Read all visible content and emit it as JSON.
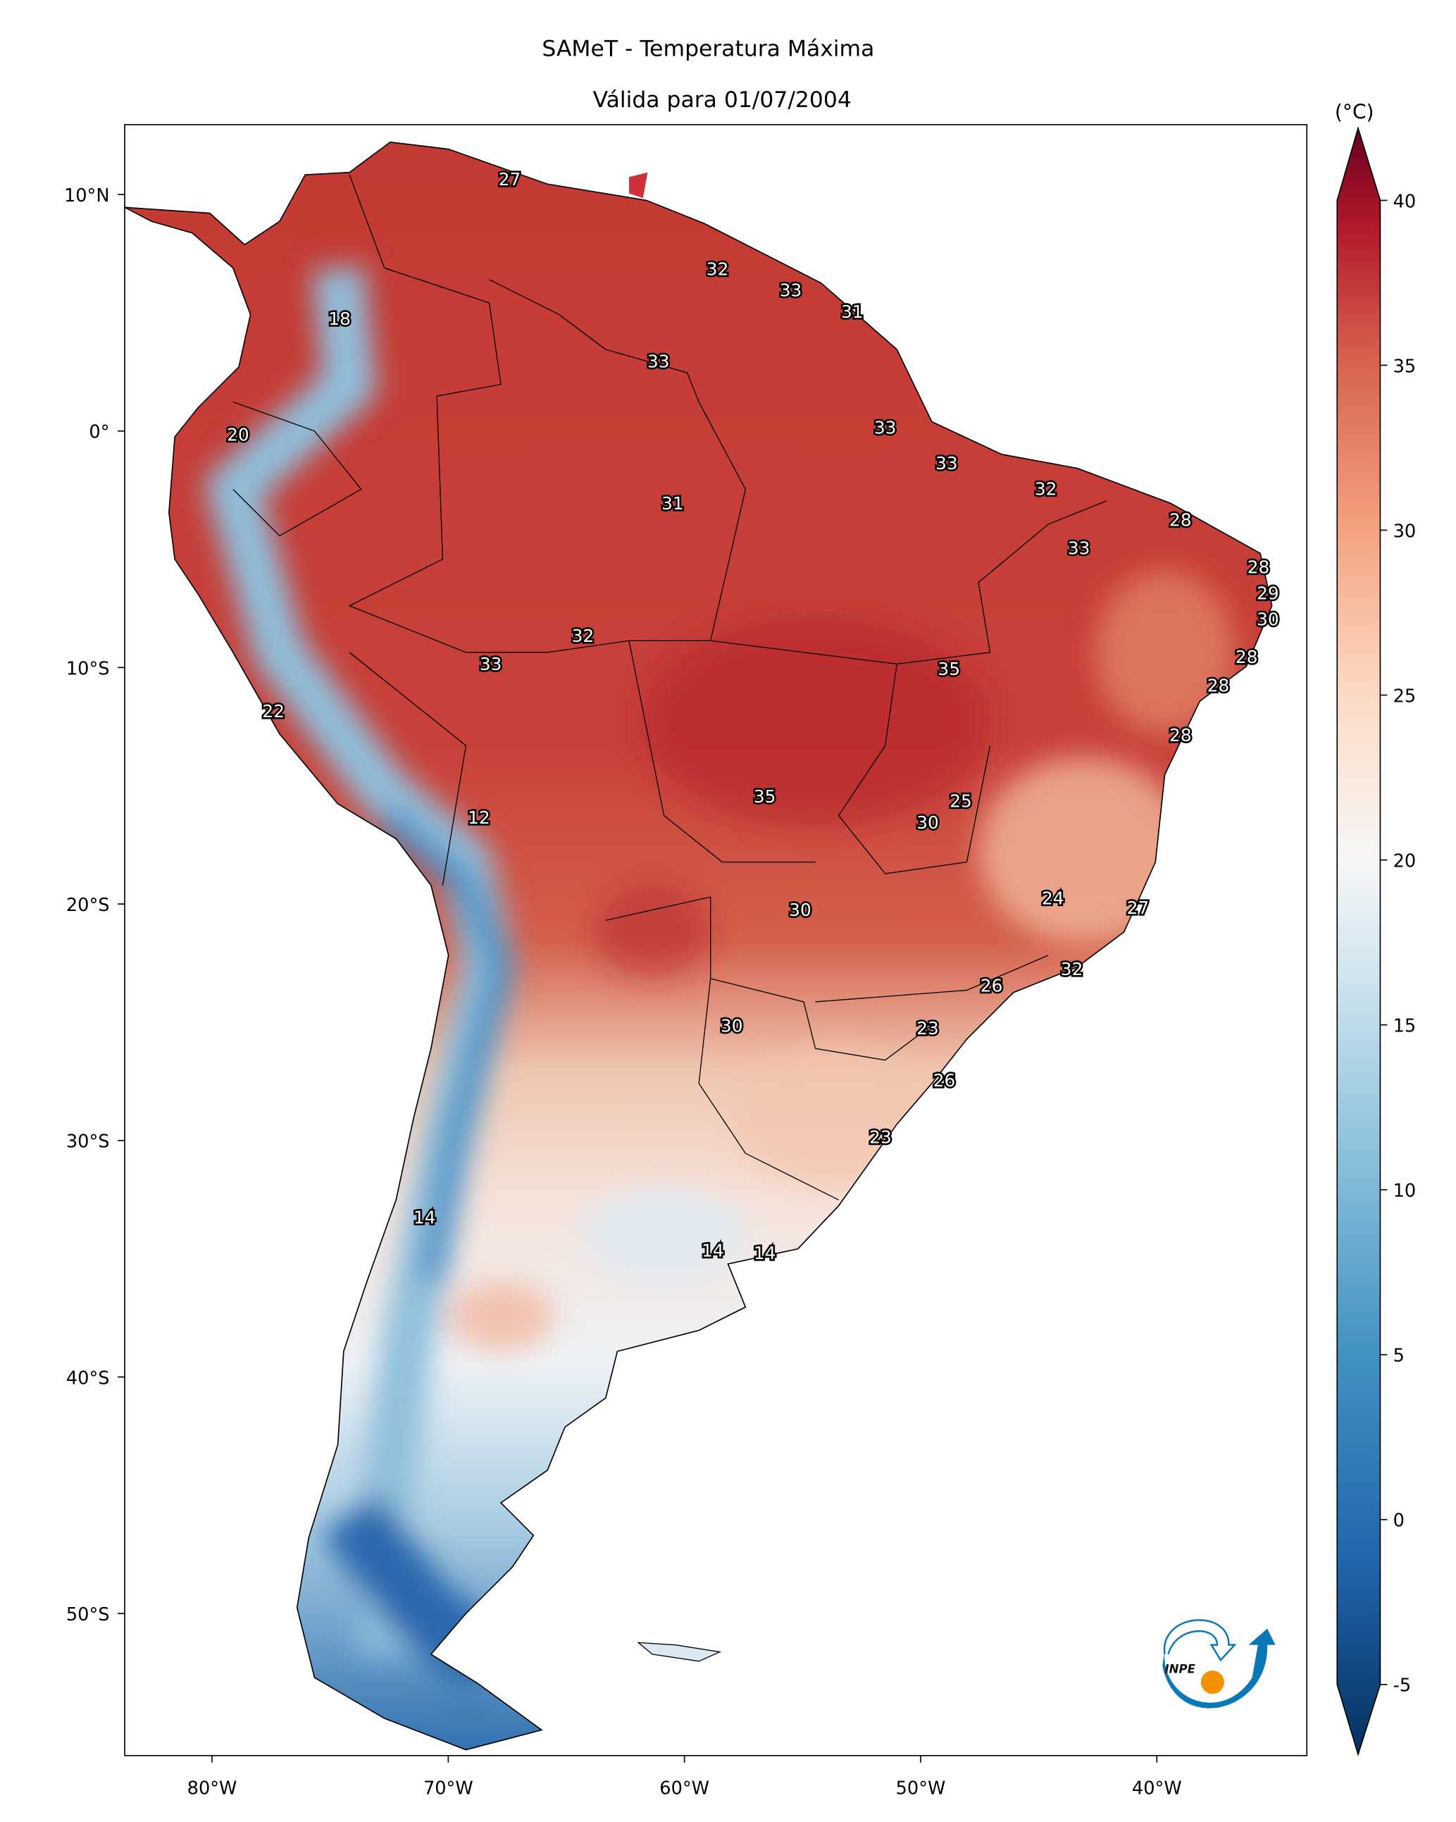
{
  "title": "SAMeT - Temperatura Máxima",
  "subtitle": "Válida para 01/07/2004",
  "colorbar": {
    "unit": "(°C)",
    "range": [
      -5,
      40
    ],
    "ticks": [
      "40",
      "35",
      "30",
      "25",
      "20",
      "15",
      "10",
      "5",
      "0",
      "-5"
    ],
    "tick_values": [
      40,
      35,
      30,
      25,
      20,
      15,
      10,
      5,
      0,
      -5
    ],
    "colormap": "RdBu_r",
    "extend": "both"
  },
  "axes": {
    "lon_ticks": [
      {
        "value": -80,
        "label": "80°W"
      },
      {
        "value": -70,
        "label": "70°W"
      },
      {
        "value": -60,
        "label": "60°W"
      },
      {
        "value": -50,
        "label": "50°W"
      },
      {
        "value": -40,
        "label": "40°W"
      }
    ],
    "lat_ticks": [
      {
        "value": 10,
        "label": "10°N"
      },
      {
        "value": 0,
        "label": "0°"
      },
      {
        "value": -10,
        "label": "10°S"
      },
      {
        "value": -20,
        "label": "20°S"
      },
      {
        "value": -30,
        "label": "30°S"
      },
      {
        "value": -40,
        "label": "40°S"
      },
      {
        "value": -50,
        "label": "50°S"
      }
    ],
    "lon_range": [
      -83.7,
      -33.7
    ],
    "lat_range": [
      -56.7,
      12.9
    ]
  },
  "contour_labels": [
    {
      "v": "27",
      "lon": -67.4,
      "lat": 10.6
    },
    {
      "v": "32",
      "lon": -58.6,
      "lat": 6.8
    },
    {
      "v": "33",
      "lon": -55.5,
      "lat": 5.9
    },
    {
      "v": "31",
      "lon": -52.9,
      "lat": 5.0
    },
    {
      "v": "18",
      "lon": -74.6,
      "lat": 4.7
    },
    {
      "v": "33",
      "lon": -61.1,
      "lat": 2.9
    },
    {
      "v": "20",
      "lon": -78.9,
      "lat": -0.2
    },
    {
      "v": "33",
      "lon": -51.5,
      "lat": 0.1
    },
    {
      "v": "33",
      "lon": -48.9,
      "lat": -1.4
    },
    {
      "v": "32",
      "lon": -44.7,
      "lat": -2.5
    },
    {
      "v": "31",
      "lon": -60.5,
      "lat": -3.1
    },
    {
      "v": "28",
      "lon": -39.0,
      "lat": -3.8
    },
    {
      "v": "33",
      "lon": -43.3,
      "lat": -5.0
    },
    {
      "v": "28",
      "lon": -35.7,
      "lat": -5.8
    },
    {
      "v": "29",
      "lon": -35.3,
      "lat": -6.9
    },
    {
      "v": "30",
      "lon": -35.3,
      "lat": -8.0
    },
    {
      "v": "32",
      "lon": -64.3,
      "lat": -8.7
    },
    {
      "v": "28",
      "lon": -36.2,
      "lat": -9.6
    },
    {
      "v": "35",
      "lon": -48.8,
      "lat": -10.1
    },
    {
      "v": "33",
      "lon": -68.2,
      "lat": -9.9
    },
    {
      "v": "28",
      "lon": -37.4,
      "lat": -10.8
    },
    {
      "v": "22",
      "lon": -77.4,
      "lat": -11.9
    },
    {
      "v": "28",
      "lon": -39.0,
      "lat": -12.9
    },
    {
      "v": "35",
      "lon": -56.6,
      "lat": -15.5
    },
    {
      "v": "25",
      "lon": -48.3,
      "lat": -15.7
    },
    {
      "v": "12",
      "lon": -68.7,
      "lat": -16.4
    },
    {
      "v": "30",
      "lon": -49.7,
      "lat": -16.6
    },
    {
      "v": "24",
      "lon": -44.4,
      "lat": -19.8
    },
    {
      "v": "27",
      "lon": -40.8,
      "lat": -20.2
    },
    {
      "v": "30",
      "lon": -55.1,
      "lat": -20.3
    },
    {
      "v": "32",
      "lon": -43.6,
      "lat": -22.8
    },
    {
      "v": "26",
      "lon": -47.0,
      "lat": -23.5
    },
    {
      "v": "30",
      "lon": -58.0,
      "lat": -25.2
    },
    {
      "v": "23",
      "lon": -49.7,
      "lat": -25.3
    },
    {
      "v": "26",
      "lon": -49.0,
      "lat": -27.5
    },
    {
      "v": "23",
      "lon": -51.7,
      "lat": -29.9
    },
    {
      "v": "14",
      "lon": -71.0,
      "lat": -33.3
    },
    {
      "v": "14",
      "lon": -58.8,
      "lat": -34.7
    },
    {
      "v": "14",
      "lon": -56.6,
      "lat": -34.8
    }
  ],
  "logo": {
    "text": "INPE",
    "colors": {
      "blue": "#0a78b8",
      "orange": "#f39200"
    }
  }
}
